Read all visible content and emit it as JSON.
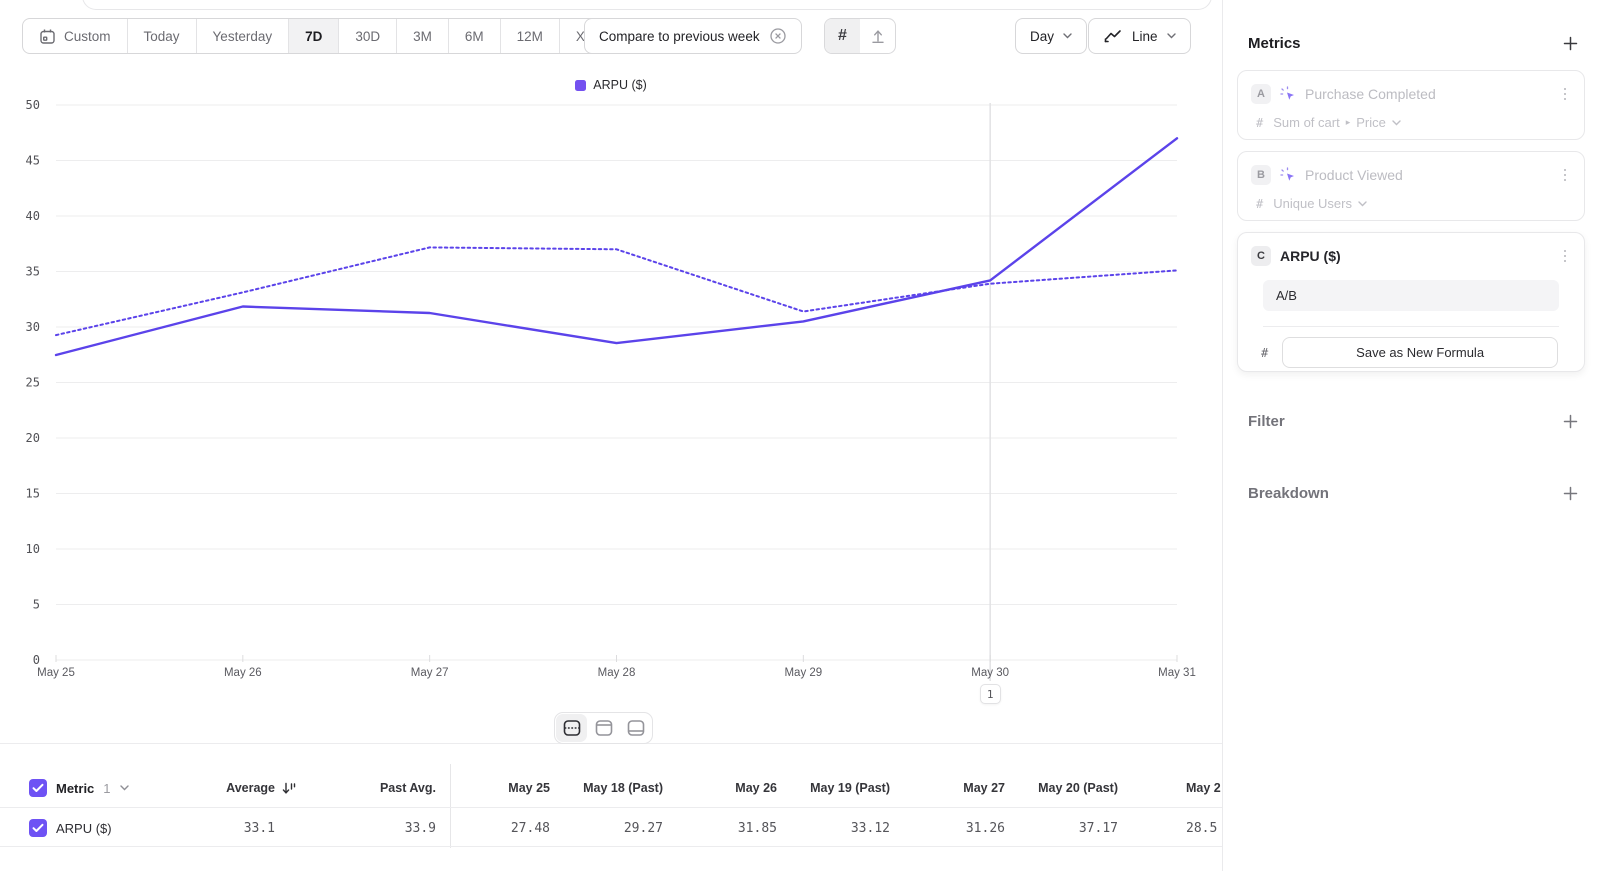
{
  "toolbar": {
    "date_ranges": [
      "Custom",
      "Today",
      "Yesterday",
      "7D",
      "30D",
      "3M",
      "6M",
      "12M",
      "XTD"
    ],
    "active_range": "7D",
    "compare_label": "Compare to previous week",
    "granularity_label": "Day",
    "chart_type_label": "Line"
  },
  "legend": {
    "label": "ARPU ($)",
    "color": "#7451f0"
  },
  "chart_data": {
    "type": "line",
    "x": [
      "May 25",
      "May 26",
      "May 27",
      "May 28",
      "May 29",
      "May 30",
      "May 31"
    ],
    "series": [
      {
        "name": "ARPU ($) current period",
        "style": "solid",
        "values": [
          27.48,
          31.85,
          31.26,
          28.55,
          30.5,
          34.2,
          47.0
        ]
      },
      {
        "name": "ARPU ($) previous week",
        "style": "dotted",
        "values": [
          29.27,
          33.12,
          37.17,
          37.0,
          31.4,
          33.9,
          35.1
        ]
      }
    ],
    "ylim": [
      0,
      50
    ],
    "yticks": [
      0,
      5,
      10,
      15,
      20,
      25,
      30,
      35,
      40,
      45,
      50
    ],
    "line_color": "#5b43ea",
    "grid": true,
    "legend_position": "top-center",
    "annotation_x": "May 30",
    "annotation_marker": "1"
  },
  "sidebar": {
    "metrics_title": "Metrics",
    "cards": [
      {
        "badge": "A",
        "title": "Purchase Completed",
        "aggregation_prefix": "#",
        "measure": "Sum of cart",
        "measure_property": "Price"
      },
      {
        "badge": "B",
        "title": "Product Viewed",
        "aggregation_prefix": "#",
        "measure": "Unique Users"
      },
      {
        "badge": "C",
        "title": "ARPU ($)",
        "aggregation_prefix": "#",
        "formula": "A/B",
        "save_button_label": "Save as New Formula"
      }
    ],
    "filter_title": "Filter",
    "breakdown_title": "Breakdown"
  },
  "table": {
    "metric_label": "Metric",
    "metric_count": "1",
    "columns": [
      "Average",
      "Past Avg.",
      "May 25",
      "May 18 (Past)",
      "May 26",
      "May 19 (Past)",
      "May 27",
      "May 20 (Past)",
      "May 2"
    ],
    "rows": [
      {
        "name": "ARPU ($)",
        "values": [
          "33.1",
          "33.9",
          "27.48",
          "29.27",
          "31.85",
          "33.12",
          "31.26",
          "37.17",
          "28.5"
        ]
      }
    ]
  }
}
